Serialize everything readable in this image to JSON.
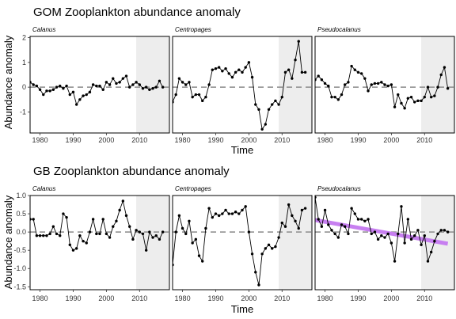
{
  "figure": {
    "colors": {
      "line": "#000000",
      "zero_line": "#9a9a9a",
      "shade": "#ededed",
      "trend": "#c77ff0",
      "frame": "#000000"
    }
  },
  "chart_data": [
    {
      "type": "line",
      "title": "GOM Zooplankton abundance anomaly",
      "ylabel": "Abundance anomaly",
      "xlabel": "Time",
      "xlim": [
        1977,
        2019
      ],
      "ylim": [
        -1.85,
        2.05
      ],
      "yticks": [
        -1,
        0,
        1,
        2
      ],
      "xticks": [
        1980,
        1990,
        2000,
        2010
      ],
      "shaded_period": [
        2009,
        2019
      ],
      "zero_line": 0,
      "panels": [
        {
          "name": "Calanus",
          "x": [
            1977,
            1978,
            1979,
            1980,
            1981,
            1982,
            1983,
            1984,
            1985,
            1986,
            1987,
            1988,
            1989,
            1990,
            1991,
            1992,
            1993,
            1994,
            1995,
            1996,
            1997,
            1998,
            1999,
            2000,
            2001,
            2002,
            2003,
            2004,
            2005,
            2006,
            2007,
            2008,
            2009,
            2010,
            2011,
            2012,
            2013,
            2014,
            2015,
            2016,
            2017
          ],
          "y": [
            0.2,
            0.1,
            0.05,
            -0.1,
            -0.3,
            -0.15,
            -0.15,
            -0.1,
            0.0,
            0.05,
            -0.05,
            0.05,
            -0.3,
            -0.2,
            -0.7,
            -0.5,
            -0.35,
            -0.3,
            -0.2,
            0.1,
            0.05,
            0.05,
            -0.1,
            0.2,
            0.1,
            0.35,
            0.15,
            0.2,
            0.35,
            0.45,
            0.0,
            0.1,
            0.2,
            0.1,
            -0.05,
            0.0,
            -0.1,
            -0.05,
            0.0,
            0.25,
            0.0
          ]
        },
        {
          "name": "Centropages",
          "x": [
            1977,
            1978,
            1979,
            1980,
            1981,
            1982,
            1983,
            1984,
            1985,
            1986,
            1987,
            1988,
            1989,
            1990,
            1991,
            1992,
            1993,
            1994,
            1995,
            1996,
            1997,
            1998,
            1999,
            2000,
            2001,
            2002,
            2003,
            2004,
            2005,
            2006,
            2007,
            2008,
            2009,
            2010,
            2011,
            2012,
            2013,
            2014,
            2015,
            2016,
            2017
          ],
          "y": [
            -0.6,
            -0.3,
            0.35,
            0.2,
            0.1,
            0.2,
            -0.4,
            -0.3,
            -0.3,
            -0.55,
            -0.4,
            0.1,
            0.7,
            0.75,
            0.8,
            0.65,
            0.75,
            0.55,
            0.4,
            0.6,
            0.7,
            0.6,
            0.8,
            1.0,
            0.4,
            -0.7,
            -0.9,
            -1.7,
            -1.5,
            -0.9,
            -0.7,
            -0.55,
            -0.7,
            -0.4,
            0.6,
            0.7,
            0.35,
            1.1,
            1.85,
            0.6,
            0.6
          ]
        },
        {
          "name": "Pseudocalanus",
          "x": [
            1977,
            1978,
            1979,
            1980,
            1981,
            1982,
            1983,
            1984,
            1985,
            1986,
            1987,
            1988,
            1989,
            1990,
            1991,
            1992,
            1993,
            1994,
            1995,
            1996,
            1997,
            1998,
            1999,
            2000,
            2001,
            2002,
            2003,
            2004,
            2005,
            2006,
            2007,
            2008,
            2009,
            2010,
            2011,
            2012,
            2013,
            2014,
            2015,
            2016,
            2017
          ],
          "y": [
            0.3,
            0.45,
            0.3,
            0.15,
            0.05,
            -0.4,
            -0.4,
            -0.5,
            -0.3,
            0.1,
            0.2,
            0.85,
            0.7,
            0.6,
            0.55,
            0.35,
            -0.15,
            0.1,
            0.15,
            0.15,
            0.2,
            0.1,
            0.05,
            0.1,
            -0.8,
            -0.3,
            -0.65,
            -0.85,
            -0.45,
            -0.4,
            -0.6,
            -0.55,
            -0.55,
            -0.4,
            0.0,
            -0.4,
            -0.35,
            0.0,
            0.5,
            0.8,
            -0.05
          ]
        }
      ]
    },
    {
      "type": "line",
      "title": "GB Zooplankton abundance anomaly",
      "ylabel": "Abundance anomaly",
      "xlabel": "Time",
      "xlim": [
        1977,
        2019
      ],
      "ylim": [
        -1.58,
        1.0
      ],
      "yticks": [
        -1.5,
        -1.0,
        -0.5,
        0.0,
        0.5,
        1.0
      ],
      "xticks": [
        1980,
        1990,
        2000,
        2010
      ],
      "shaded_period": [
        2009,
        2019
      ],
      "zero_line": 0,
      "panels": [
        {
          "name": "Calanus",
          "x": [
            1977,
            1978,
            1979,
            1980,
            1981,
            1982,
            1983,
            1984,
            1985,
            1986,
            1987,
            1988,
            1989,
            1990,
            1991,
            1992,
            1993,
            1994,
            1995,
            1996,
            1997,
            1998,
            1999,
            2000,
            2001,
            2002,
            2003,
            2004,
            2005,
            2006,
            2007,
            2008,
            2009,
            2010,
            2011,
            2012,
            2013,
            2014,
            2015,
            2016,
            2017
          ],
          "y": [
            0.35,
            0.35,
            -0.1,
            -0.1,
            -0.1,
            -0.1,
            -0.05,
            0.15,
            -0.05,
            -0.1,
            0.5,
            0.4,
            -0.35,
            -0.5,
            -0.45,
            -0.1,
            -0.25,
            -0.3,
            0.0,
            0.35,
            -0.05,
            -0.05,
            0.35,
            -0.05,
            -0.15,
            0.15,
            0.3,
            0.6,
            0.85,
            0.45,
            0.15,
            -0.2,
            0.05,
            0.0,
            -0.05,
            -0.5,
            0.0,
            -0.15,
            -0.1,
            -0.2,
            0.0
          ]
        },
        {
          "name": "Centropages",
          "x": [
            1977,
            1978,
            1979,
            1980,
            1981,
            1982,
            1983,
            1984,
            1985,
            1986,
            1987,
            1988,
            1989,
            1990,
            1991,
            1992,
            1993,
            1994,
            1995,
            1996,
            1997,
            1998,
            1999,
            2000,
            2001,
            2002,
            2003,
            2004,
            2005,
            2006,
            2007,
            2008,
            2009,
            2010,
            2011,
            2012,
            2013,
            2014,
            2015,
            2016,
            2017
          ],
          "y": [
            -0.9,
            0.0,
            0.45,
            0.1,
            -0.05,
            0.3,
            -0.3,
            -0.2,
            -0.65,
            -0.8,
            0.1,
            0.65,
            0.4,
            0.5,
            0.45,
            0.5,
            0.6,
            0.5,
            0.5,
            0.55,
            0.5,
            0.6,
            0.7,
            0.0,
            -0.6,
            -1.1,
            -1.45,
            -0.6,
            -0.45,
            -0.35,
            -0.45,
            -0.4,
            -0.15,
            0.25,
            0.15,
            0.75,
            0.45,
            0.3,
            0.1,
            0.6,
            0.65
          ]
        },
        {
          "name": "Pseudocalanus",
          "x": [
            1977,
            1978,
            1979,
            1980,
            1981,
            1982,
            1983,
            1984,
            1985,
            1986,
            1987,
            1988,
            1989,
            1990,
            1991,
            1992,
            1993,
            1994,
            1995,
            1996,
            1997,
            1998,
            1999,
            2000,
            2001,
            2002,
            2003,
            2004,
            2005,
            2006,
            2007,
            2008,
            2009,
            2010,
            2011,
            2012,
            2013,
            2014,
            2015,
            2016,
            2017
          ],
          "y": [
            0.95,
            0.35,
            0.15,
            0.6,
            0.2,
            0.05,
            -0.05,
            -0.15,
            0.2,
            0.15,
            -0.05,
            0.65,
            0.5,
            0.35,
            0.35,
            0.3,
            0.35,
            -0.05,
            0.0,
            -0.2,
            -0.1,
            -0.15,
            -0.05,
            -0.3,
            -0.8,
            -0.05,
            0.7,
            -0.3,
            0.35,
            -0.2,
            -0.1,
            0.05,
            -0.35,
            -0.1,
            -0.8,
            -0.55,
            -0.25,
            -0.05,
            0.05,
            0.05,
            0.0
          ],
          "trend": {
            "x": [
              1977,
              2017
            ],
            "y": [
              0.33,
              -0.32
            ]
          }
        }
      ]
    }
  ]
}
